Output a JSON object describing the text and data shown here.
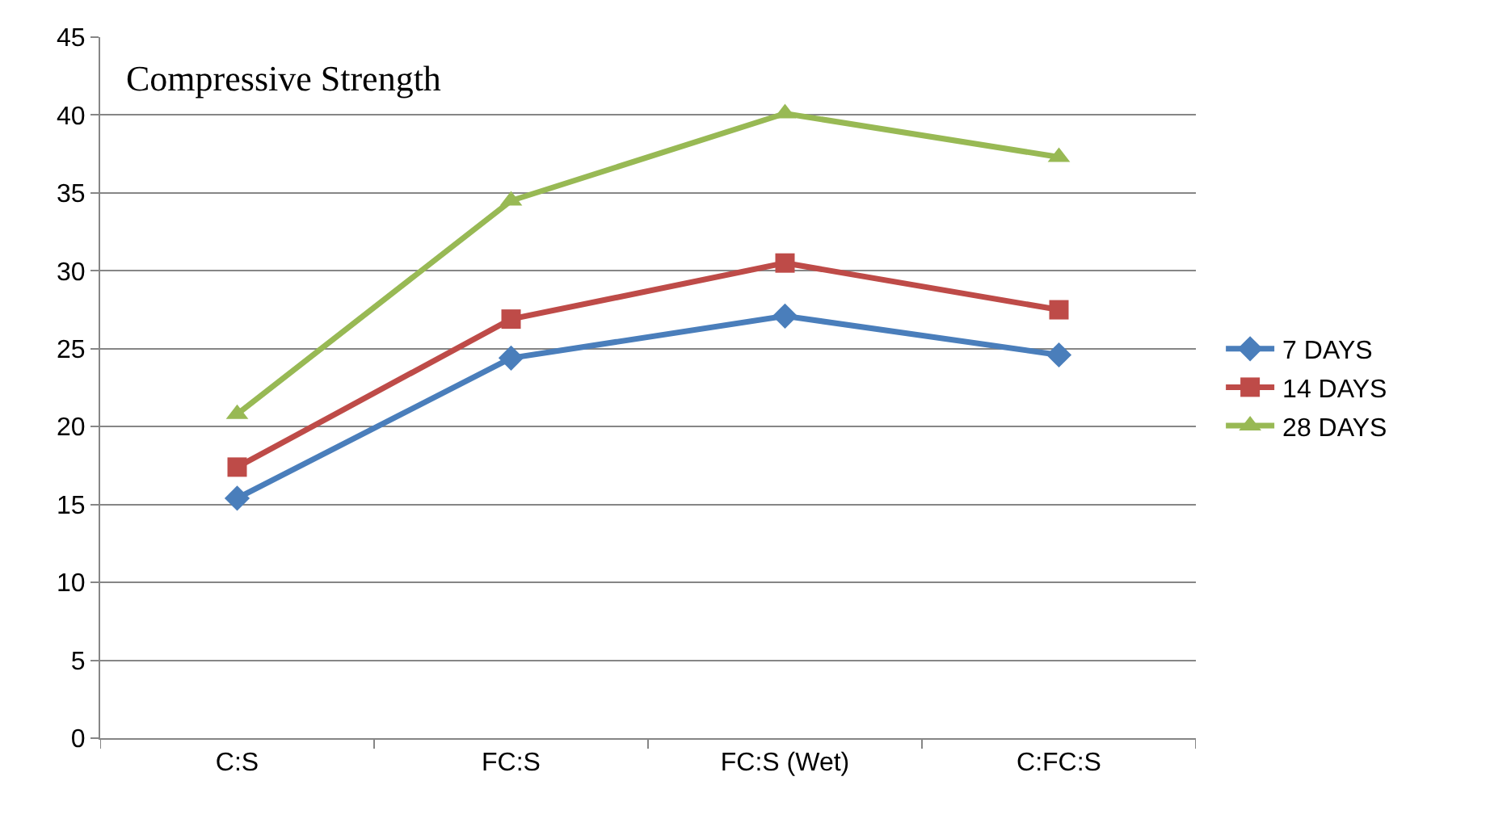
{
  "chart_data": {
    "type": "line",
    "title": "Compressive Strength",
    "categories": [
      "C:S",
      "FC:S",
      "FC:S (Wet)",
      "C:FC:S"
    ],
    "series": [
      {
        "name": "7 DAYS",
        "color": "#4a7ebb",
        "marker": "diamond",
        "values": [
          15.4,
          24.4,
          27.1,
          24.6
        ]
      },
      {
        "name": "14 DAYS",
        "color": "#be4b48",
        "marker": "square",
        "values": [
          17.4,
          26.9,
          30.5,
          27.5
        ]
      },
      {
        "name": "28 DAYS",
        "color": "#98b954",
        "marker": "triangle",
        "values": [
          20.8,
          34.5,
          40.1,
          37.3
        ]
      }
    ],
    "ylim": [
      0,
      45
    ],
    "yticks": [
      0,
      5,
      10,
      15,
      20,
      25,
      30,
      35,
      40,
      45
    ],
    "grid": "y",
    "legend": "right"
  }
}
